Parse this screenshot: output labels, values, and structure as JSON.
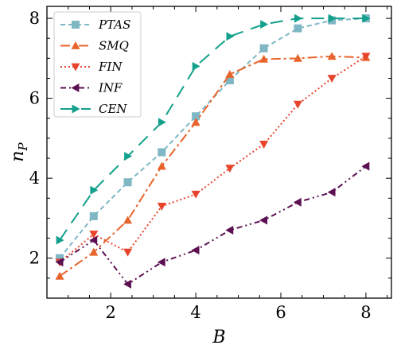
{
  "chart_data": {
    "type": "line",
    "xlabel": "B",
    "ylabel": "n_P",
    "xlim": [
      0.5,
      8.6
    ],
    "ylim": [
      1.0,
      8.3
    ],
    "xticks": [
      2,
      4,
      6,
      8
    ],
    "yticks": [
      2,
      4,
      6,
      8
    ],
    "grid": false,
    "legend_position": "top-left",
    "series": [
      {
        "name": "PTAS",
        "color": "#7fb7c4",
        "dash": "6,4",
        "marker": "square",
        "x": [
          0.8,
          1.6,
          2.4,
          3.2,
          4.0,
          4.8,
          5.6,
          6.4,
          7.2,
          8.0
        ],
        "y": [
          2.0,
          3.05,
          3.9,
          4.65,
          5.55,
          6.45,
          7.25,
          7.75,
          7.95,
          8.0
        ]
      },
      {
        "name": "SMQ",
        "color": "#e8642c",
        "dash": "12,4,3,4",
        "marker": "triangle-up",
        "x": [
          0.8,
          1.6,
          2.4,
          3.2,
          4.0,
          4.8,
          5.6,
          6.4,
          7.2,
          8.0
        ],
        "y": [
          1.55,
          2.15,
          2.95,
          4.3,
          5.4,
          6.6,
          6.98,
          7.0,
          7.05,
          7.02
        ]
      },
      {
        "name": "FIN",
        "color": "#e8442c",
        "dash": "2,3",
        "marker": "triangle-down",
        "x": [
          0.8,
          1.6,
          2.4,
          3.2,
          4.0,
          4.8,
          5.6,
          6.4,
          7.2,
          8.0
        ],
        "y": [
          1.9,
          2.6,
          2.15,
          3.3,
          3.6,
          4.25,
          4.85,
          5.85,
          6.5,
          7.05
        ]
      },
      {
        "name": "INF",
        "color": "#5c1052",
        "dash": "7,4,2,4,2,4",
        "marker": "triangle-left",
        "x": [
          0.8,
          1.6,
          2.4,
          3.2,
          4.0,
          4.8,
          5.6,
          6.4,
          7.2,
          8.0
        ],
        "y": [
          1.9,
          2.45,
          1.35,
          1.9,
          2.2,
          2.7,
          2.95,
          3.4,
          3.65,
          4.3
        ]
      },
      {
        "name": "CEN",
        "color": "#13a08c",
        "dash": "16,10",
        "marker": "triangle-right",
        "x": [
          0.8,
          1.6,
          2.4,
          3.2,
          4.0,
          4.8,
          5.6,
          6.4,
          7.2,
          8.0
        ],
        "y": [
          2.45,
          3.7,
          4.55,
          5.4,
          6.8,
          7.55,
          7.85,
          8.0,
          8.0,
          8.0
        ]
      }
    ]
  }
}
